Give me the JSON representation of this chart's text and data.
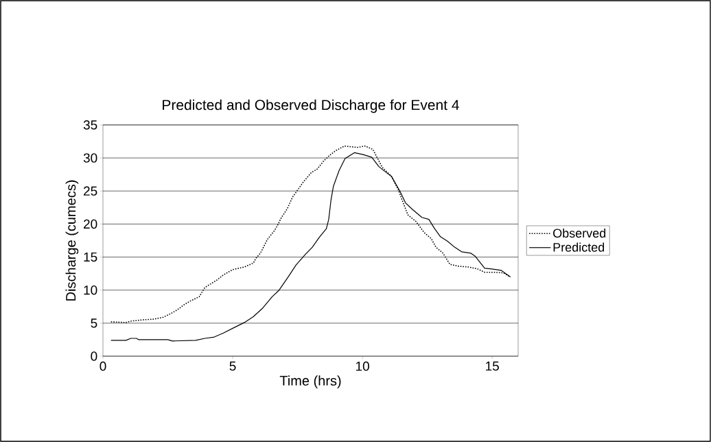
{
  "chart_data": {
    "type": "line",
    "title": "Predicted and Observed Discharge for Event 4",
    "xlabel": "Time (hrs)",
    "ylabel": "Discharge (cumecs)",
    "xlim": [
      0,
      16
    ],
    "ylim": [
      0,
      35
    ],
    "xticks": [
      0,
      5,
      10,
      15
    ],
    "yticks": [
      0,
      5,
      10,
      15,
      20,
      25,
      30,
      35
    ],
    "grid": "y",
    "legend": "right",
    "marker": "none",
    "series": [
      {
        "name": "Observed",
        "color": "#000000",
        "line_style": "dotted",
        "x": [
          0.31,
          0.89,
          1.07,
          1.52,
          1.96,
          2.32,
          2.59,
          2.86,
          3.13,
          3.39,
          3.71,
          3.93,
          4.38,
          4.64,
          5.0,
          5.45,
          5.8,
          5.89,
          6.07,
          6.34,
          6.61,
          6.74,
          6.88,
          7.1,
          7.31,
          7.53,
          7.71,
          8.03,
          8.25,
          8.52,
          8.74,
          8.97,
          9.3,
          9.8,
          10.1,
          10.4,
          10.76,
          11.12,
          11.39,
          11.57,
          11.75,
          12.06,
          12.38,
          12.65,
          12.83,
          13.1,
          13.37,
          13.73,
          14.08,
          14.44,
          14.71,
          15.07,
          15.43,
          15.7
        ],
        "values": [
          5.2,
          5.1,
          5.3,
          5.5,
          5.6,
          5.9,
          6.4,
          7.0,
          7.8,
          8.4,
          9.0,
          10.4,
          11.5,
          12.3,
          13.1,
          13.5,
          14.1,
          14.8,
          15.6,
          17.7,
          19.0,
          19.9,
          21.0,
          22.3,
          24.1,
          25.3,
          26.3,
          27.8,
          28.3,
          29.6,
          30.4,
          31.1,
          31.8,
          31.6,
          31.8,
          31.3,
          28.6,
          27.2,
          25.1,
          23.2,
          21.4,
          20.4,
          18.7,
          17.8,
          16.5,
          15.6,
          13.9,
          13.6,
          13.5,
          13.2,
          12.7,
          12.7,
          12.6,
          12.0
        ]
      },
      {
        "name": "Predicted",
        "color": "#000000",
        "line_style": "solid",
        "x": [
          0.31,
          0.89,
          1.07,
          1.29,
          1.38,
          2.5,
          2.68,
          3.57,
          3.93,
          4.29,
          4.64,
          5.09,
          5.45,
          5.8,
          6.16,
          6.52,
          6.79,
          7.14,
          7.44,
          7.8,
          8.07,
          8.34,
          8.61,
          8.7,
          8.79,
          8.88,
          9.1,
          9.33,
          9.69,
          10.04,
          10.36,
          10.63,
          10.85,
          11.12,
          11.44,
          11.66,
          11.93,
          12.29,
          12.56,
          12.78,
          13.0,
          13.28,
          13.55,
          13.82,
          14.17,
          14.35,
          14.71,
          14.98,
          15.34,
          15.7
        ],
        "values": [
          2.4,
          2.4,
          2.7,
          2.7,
          2.5,
          2.5,
          2.3,
          2.4,
          2.7,
          2.9,
          3.5,
          4.4,
          5.1,
          6.0,
          7.3,
          9.0,
          10.0,
          12.0,
          13.8,
          15.4,
          16.5,
          18.0,
          19.3,
          20.7,
          23.7,
          25.7,
          28.1,
          29.9,
          30.8,
          30.5,
          30.1,
          28.7,
          28.0,
          27.2,
          25.0,
          23.2,
          22.2,
          21.0,
          20.7,
          19.3,
          18.1,
          17.4,
          16.5,
          15.8,
          15.6,
          15.1,
          13.3,
          13.2,
          13.0,
          12.0
        ]
      }
    ]
  }
}
